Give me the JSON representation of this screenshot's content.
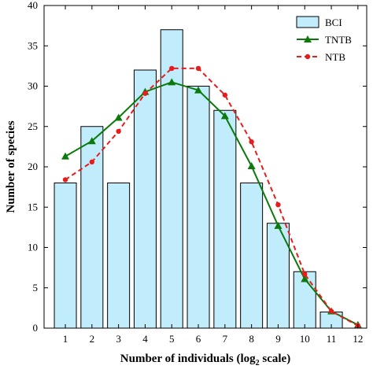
{
  "chart_data": {
    "type": "bar",
    "xlabel": "Number of individuals (log",
    "xlabel_sub": "2",
    "xlabel_suffix": " scale)",
    "ylabel": "Number of species",
    "x": [
      1,
      2,
      3,
      4,
      5,
      6,
      7,
      8,
      9,
      10,
      11,
      12
    ],
    "xlim": [
      0,
      12
    ],
    "ylim": [
      0,
      40
    ],
    "yticks": [
      0,
      5,
      10,
      15,
      20,
      25,
      30,
      35,
      40
    ],
    "xticks": [
      1,
      2,
      3,
      4,
      5,
      6,
      7,
      8,
      9,
      10,
      11,
      12
    ],
    "legend_position": "top-right",
    "series": [
      {
        "name": "BCI",
        "kind": "bar",
        "x": [
          1,
          2,
          3,
          4,
          5,
          6,
          7,
          8,
          9,
          10,
          11
        ],
        "values": [
          18,
          25,
          18,
          32,
          37,
          30,
          27,
          18,
          13,
          7,
          2
        ],
        "color": "#c0ecfb",
        "edge": "#000000"
      },
      {
        "name": "TNTB",
        "kind": "line",
        "marker": "triangle",
        "x": [
          1,
          2,
          3,
          4,
          5,
          6,
          7,
          8,
          9,
          10,
          11,
          12
        ],
        "values": [
          21.3,
          23.2,
          26.1,
          29.3,
          30.5,
          29.5,
          26.3,
          20.1,
          12.7,
          6.1,
          2.1,
          0.4
        ],
        "color": "#0b7a0b"
      },
      {
        "name": "NTB",
        "kind": "line",
        "marker": "circle",
        "dashed": true,
        "x": [
          1,
          2,
          3,
          4,
          5,
          6,
          7,
          8,
          9,
          10,
          11,
          12
        ],
        "values": [
          18.4,
          20.6,
          24.4,
          29.1,
          32.2,
          32.2,
          28.9,
          23.1,
          15.3,
          6.7,
          2.1,
          0.3
        ],
        "color": "#e81c1c"
      }
    ]
  }
}
